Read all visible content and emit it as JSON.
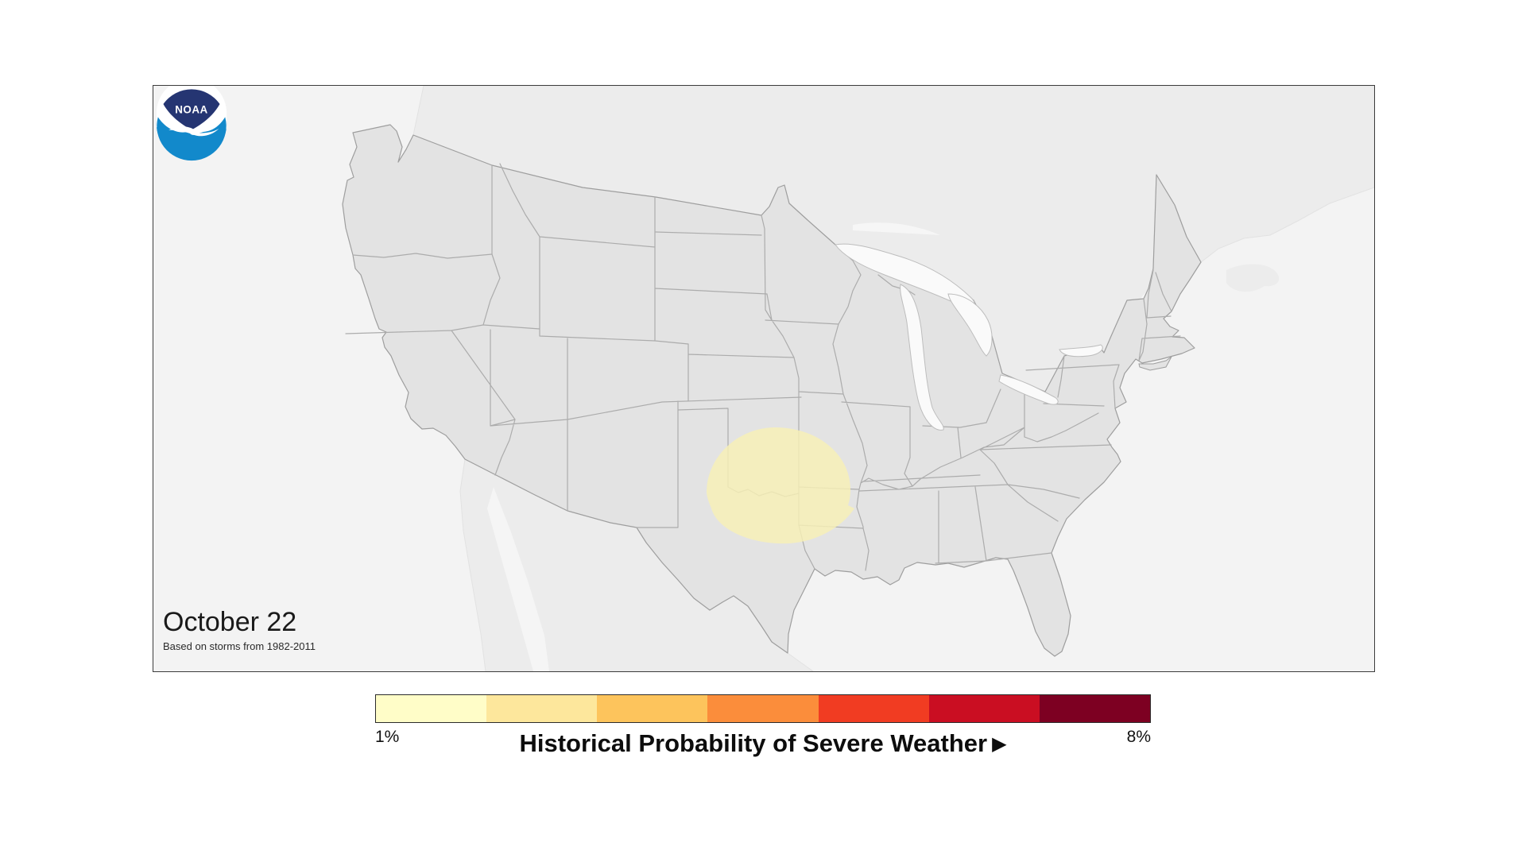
{
  "header": {
    "date": "October 22",
    "subtitle": "Based on storms from 1982-2011"
  },
  "legend": {
    "title": "Historical Probability of Severe Weather",
    "arrow_glyph": "▶",
    "min_label": "1%",
    "max_label": "8%",
    "colors": [
      "#FFFDC8",
      "#FDE79C",
      "#FDC45C",
      "#FB8D3B",
      "#F13C22",
      "#CA0E22",
      "#7D0022"
    ]
  },
  "map": {
    "colors": {
      "ocean": "#F3F3F3",
      "land": "#E3E3E3",
      "neighbor_land": "#ECECEC",
      "state_border": "#ACACAC",
      "neighbor_border": "#E0E0E0",
      "lake": "#FAFAFA",
      "risk_area": "#F8F0B6",
      "frame_border": "#3C3C3C"
    }
  },
  "logo": {
    "text": "NOAA",
    "navy": "#253572",
    "blue": "#1289CB",
    "white": "#FFFFFF"
  }
}
